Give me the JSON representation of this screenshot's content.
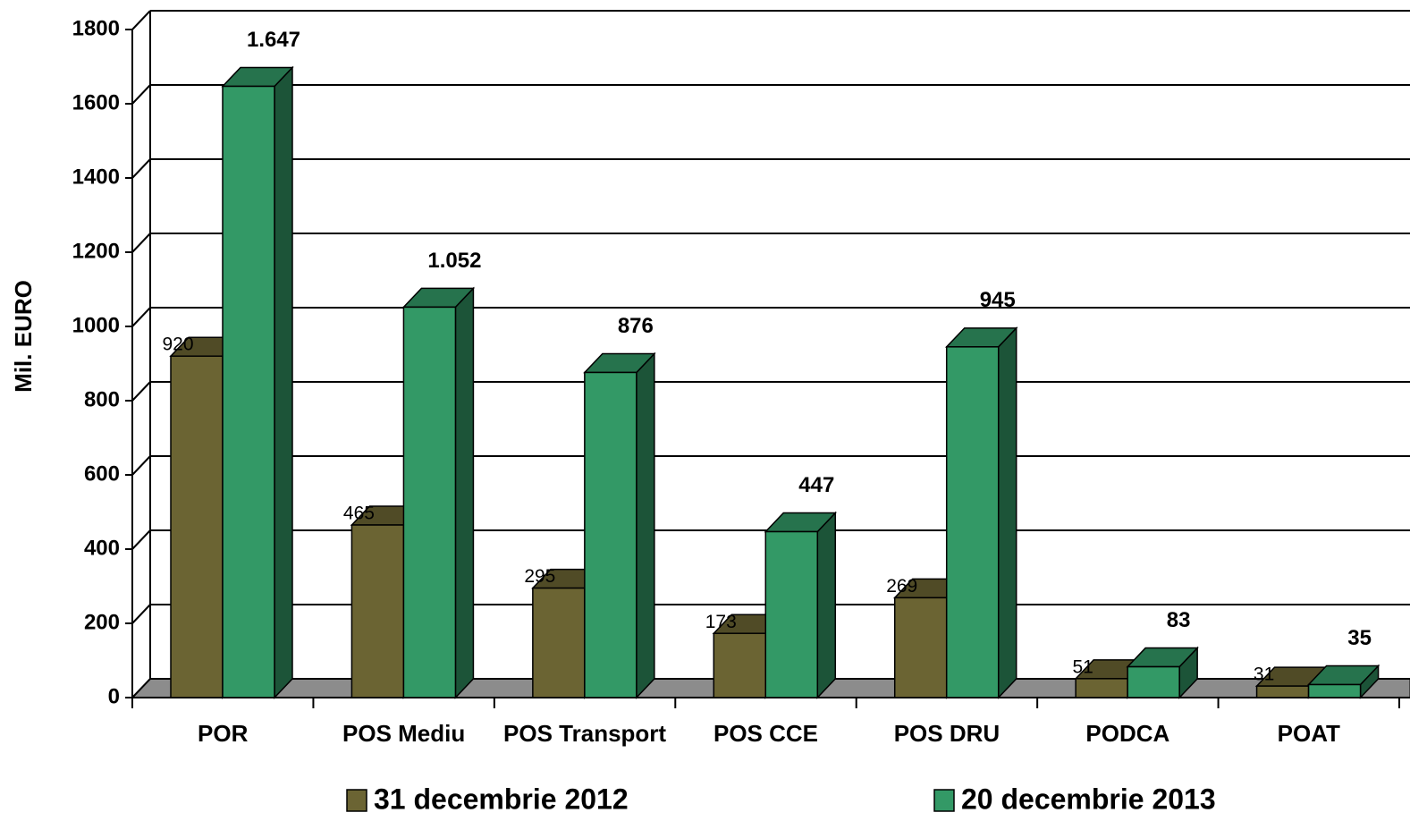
{
  "chart_data": {
    "type": "bar3d",
    "y_label": "Mil. EURO",
    "categories": [
      "POR",
      "POS Mediu",
      "POS Transport",
      "POS CCE",
      "POS DRU",
      "PODCA",
      "POAT"
    ],
    "series": [
      {
        "name": "31 decembrie 2012",
        "color": "#6b6433",
        "values": [
          920,
          465,
          295,
          173,
          269,
          51,
          31
        ]
      },
      {
        "name": "20 decembrie 2013",
        "color": "#339966",
        "values": [
          1647,
          1052,
          876,
          447,
          945,
          83,
          35
        ],
        "value_labels": [
          "1.647",
          "1.052",
          "876",
          "447",
          "945",
          "83",
          "35"
        ]
      }
    ],
    "ylim": [
      0,
      1800
    ],
    "yticks": [
      0,
      200,
      400,
      600,
      800,
      1000,
      1200,
      1400,
      1600,
      1800
    ],
    "grid": true
  }
}
